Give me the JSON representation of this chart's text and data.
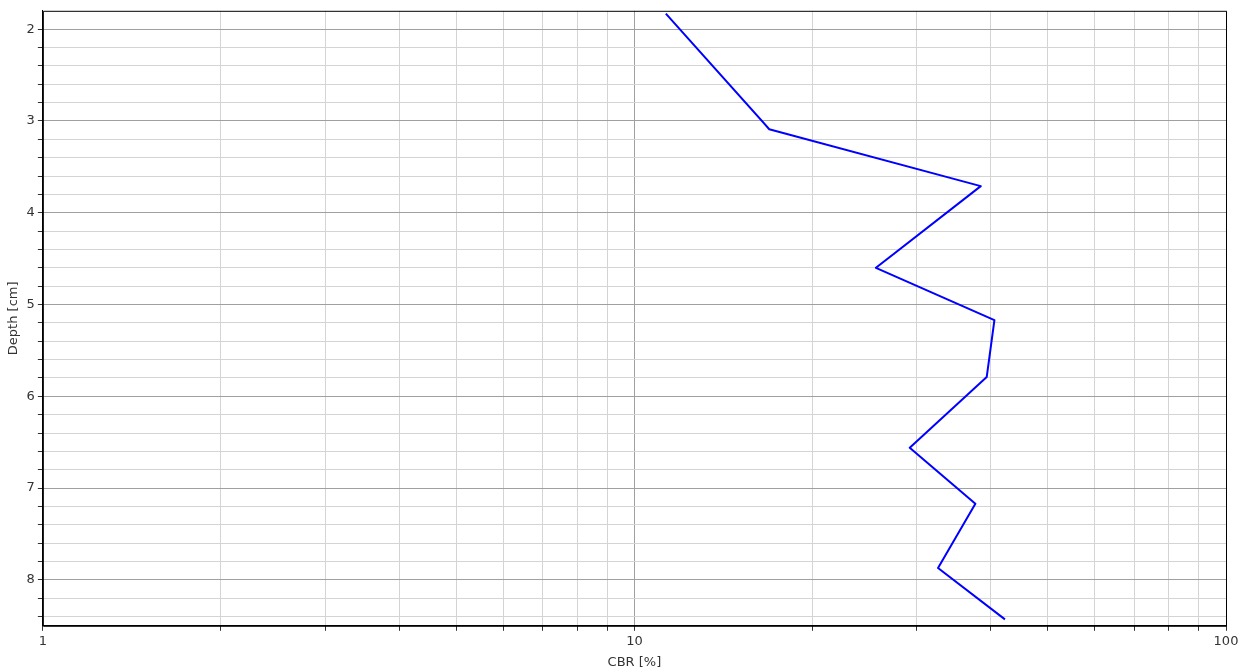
{
  "chart_data": {
    "type": "line",
    "xlabel": "CBR [%]",
    "ylabel": "Depth [cm]",
    "log": "x",
    "grid": true,
    "legend": false,
    "marker": "none",
    "line_style": "solid",
    "xlim": [
      1,
      100
    ],
    "ylim": [
      8.5,
      1.8
    ],
    "xticks": [
      1,
      {
        "value": 2,
        "label": null
      },
      {
        "value": 3,
        "label": null
      },
      {
        "value": 4,
        "label": null
      },
      {
        "value": 5,
        "label": null
      },
      {
        "value": 6,
        "label": null
      },
      {
        "value": 7,
        "label": null
      },
      {
        "value": 8,
        "label": null
      },
      {
        "value": 9,
        "label": null
      },
      10,
      {
        "value": 20,
        "label": null
      },
      {
        "value": 30,
        "label": null
      },
      {
        "value": 40,
        "label": null
      },
      {
        "value": 50,
        "label": null
      },
      {
        "value": 60,
        "label": null
      },
      {
        "value": 70,
        "label": null
      },
      {
        "value": 80,
        "label": null
      },
      {
        "value": 90,
        "label": null
      },
      100
    ],
    "yticks": [
      2,
      {
        "value": 2.2,
        "label": null
      },
      {
        "value": 2.4,
        "label": null
      },
      {
        "value": 2.6,
        "label": null
      },
      {
        "value": 2.8,
        "label": null
      },
      3,
      {
        "value": 3.2,
        "label": null
      },
      {
        "value": 3.4,
        "label": null
      },
      {
        "value": 3.6,
        "label": null
      },
      {
        "value": 3.8,
        "label": null
      },
      4,
      {
        "value": 4.2,
        "label": null
      },
      {
        "value": 4.4,
        "label": null
      },
      {
        "value": 4.6,
        "label": null
      },
      {
        "value": 4.8,
        "label": null
      },
      5,
      {
        "value": 5.2,
        "label": null
      },
      {
        "value": 5.4,
        "label": null
      },
      {
        "value": 5.6,
        "label": null
      },
      {
        "value": 5.8,
        "label": null
      },
      6,
      {
        "value": 6.2,
        "label": null
      },
      {
        "value": 6.4,
        "label": null
      },
      {
        "value": 6.6,
        "label": null
      },
      {
        "value": 6.8,
        "label": null
      },
      7,
      {
        "value": 7.2,
        "label": null
      },
      {
        "value": 7.4,
        "label": null
      },
      {
        "value": 7.6,
        "label": null
      },
      {
        "value": 7.8,
        "label": null
      },
      8,
      {
        "value": 8.2,
        "label": null
      },
      {
        "value": 8.4,
        "label": null
      }
    ],
    "series": [
      {
        "color": "#0000ff",
        "x": [
          11.3,
          16.9,
          38.5,
          25.6,
          40.6,
          39.4,
          29.2,
          37.7,
          32.6,
          42.3
        ],
        "values": [
          1.83,
          3.09,
          3.71,
          4.6,
          5.17,
          5.79,
          6.56,
          7.17,
          7.87,
          8.43
        ]
      }
    ]
  }
}
